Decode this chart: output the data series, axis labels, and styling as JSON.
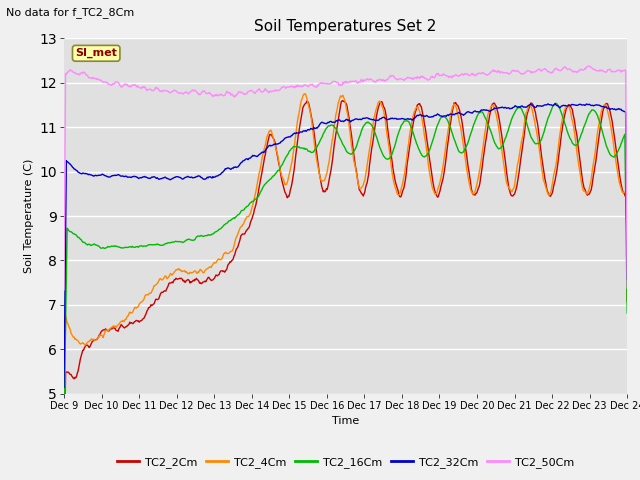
{
  "title": "Soil Temperatures Set 2",
  "subtitle": "No data for f_TC2_8Cm",
  "xlabel": "Time",
  "ylabel": "Soil Temperature (C)",
  "ylim": [
    5.0,
    13.0
  ],
  "yticks": [
    5.0,
    6.0,
    7.0,
    8.0,
    9.0,
    10.0,
    11.0,
    12.0,
    13.0
  ],
  "x_labels": [
    "Dec 9",
    "Dec 10",
    "Dec 11",
    "Dec 12",
    "Dec 13",
    "Dec 14",
    "Dec 15",
    "Dec 16",
    "Dec 17",
    "Dec 18",
    "Dec 19",
    "Dec 20",
    "Dec 21",
    "Dec 22",
    "Dec 23",
    "Dec 24"
  ],
  "series": {
    "TC2_2Cm": {
      "color": "#cc0000",
      "lw": 1.0
    },
    "TC2_4Cm": {
      "color": "#ff8800",
      "lw": 1.0
    },
    "TC2_16Cm": {
      "color": "#00bb00",
      "lw": 1.0
    },
    "TC2_32Cm": {
      "color": "#0000cc",
      "lw": 1.0
    },
    "TC2_50Cm": {
      "color": "#ff88ff",
      "lw": 1.0
    }
  },
  "annotation_text": "SI_met",
  "annotation_color": "#880000",
  "annotation_bg": "#ffffaa",
  "bg_color": "#e0e0e0",
  "fig_bg": "#f0f0f0",
  "grid_color": "#ffffff",
  "n_points": 720
}
